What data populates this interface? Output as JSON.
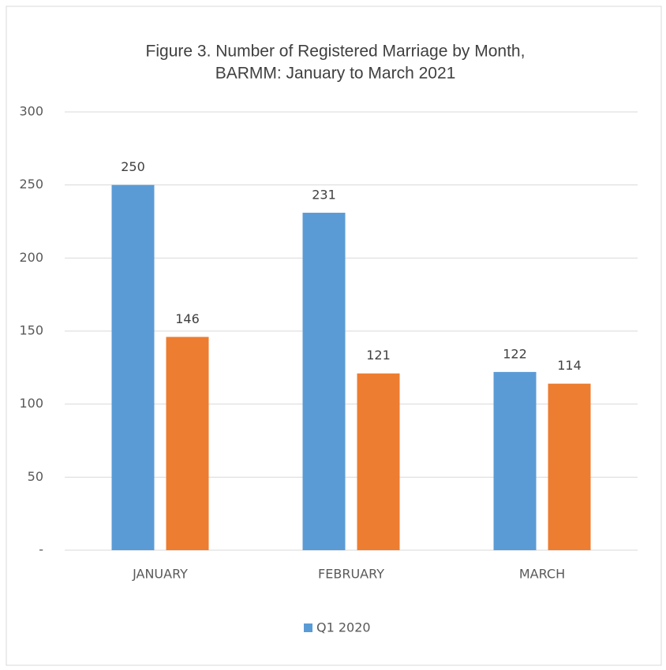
{
  "chart_data": {
    "type": "bar",
    "title": [
      "Figure 3. Number of Registered Marriage by Month,",
      "BARMM: January to March 2021"
    ],
    "categories": [
      "JANUARY",
      "FEBRUARY",
      "MARCH"
    ],
    "series": [
      {
        "name": "Q1 2020",
        "color": "#5b9bd5",
        "values": [
          250,
          231,
          122
        ]
      },
      {
        "color": "#ed7d31",
        "values": [
          146,
          121,
          114
        ]
      }
    ],
    "ylim": [
      0,
      300
    ],
    "yticks": [
      {
        "value": 0,
        "label": "-"
      },
      50,
      100,
      150,
      200,
      250,
      300
    ],
    "grid": true,
    "legend": "bottom"
  }
}
